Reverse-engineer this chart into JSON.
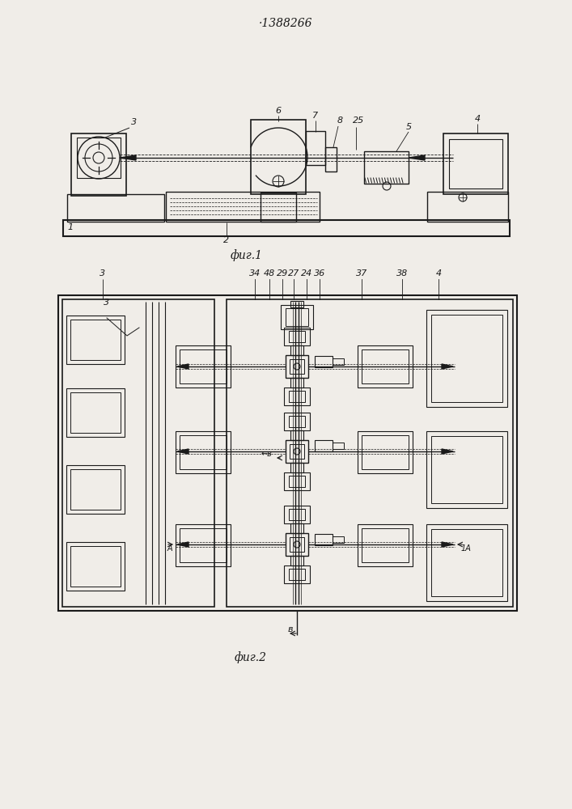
{
  "title": "·1388266",
  "fig1_caption": "фиг.1",
  "fig2_caption": "фиг.2",
  "bg_color": "#f0ede8",
  "line_color": "#1a1a1a"
}
